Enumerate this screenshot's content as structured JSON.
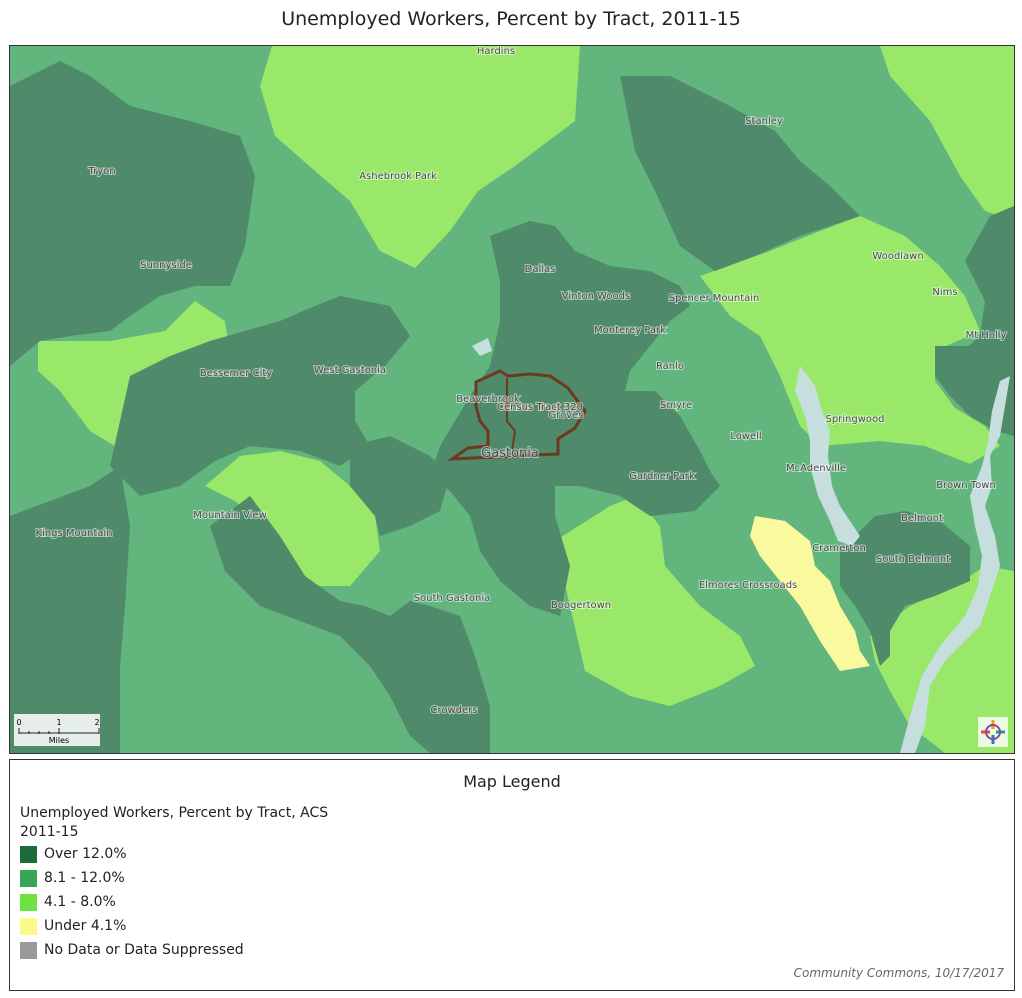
{
  "title": "Unemployed Workers, Percent by Tract, 2011-15",
  "map": {
    "colors": {
      "over_12": "#4f8b6a",
      "8_to_12": "#62b57d",
      "4_to_8": "#99e86a",
      "under_4": "#fbf99e",
      "water": "#c6dedd",
      "highlight_outline": "#6b3a1f"
    },
    "places": [
      "Hardins",
      "Stanley",
      "Tryon",
      "Ashebrook Park",
      "Sunnyside",
      "Dallas",
      "Vinton Woods",
      "Spencer Mountain",
      "Woodlawn",
      "Nims",
      "Mt Holly",
      "Monterey Park",
      "Ranlo",
      "Bessemer City",
      "West Gastonia",
      "Beaverbrook",
      "Groves",
      "Smyre",
      "Springwood",
      "Lowell",
      "McAdenville",
      "Gastonia",
      "Gardner Park",
      "Brown Town",
      "Belmont",
      "Cramerton",
      "South Belmont",
      "Kings Mountain",
      "Mountain View",
      "South Gastonia",
      "Boogertown",
      "Elmores Crossroads",
      "Crowders"
    ],
    "highlighted_tract": "Census Tract 320",
    "scale": {
      "unit": "Miles",
      "ticks": [
        "0",
        "1",
        "2"
      ]
    },
    "logo_icon": "community-commons-logo-icon"
  },
  "legend": {
    "heading": "Map Legend",
    "subtitle": "Unemployed Workers, Percent by Tract, ACS 2011-15",
    "items": [
      {
        "label": "Over 12.0%",
        "color": "#1e6b3a"
      },
      {
        "label": "8.1 - 12.0%",
        "color": "#3aa558"
      },
      {
        "label": "4.1 - 8.0%",
        "color": "#6ee33f"
      },
      {
        "label": "Under 4.1%",
        "color": "#fbf98a"
      },
      {
        "label": "No Data or Data Suppressed",
        "color": "#9a9a9a"
      }
    ],
    "credit": "Community Commons, 10/17/2017"
  }
}
